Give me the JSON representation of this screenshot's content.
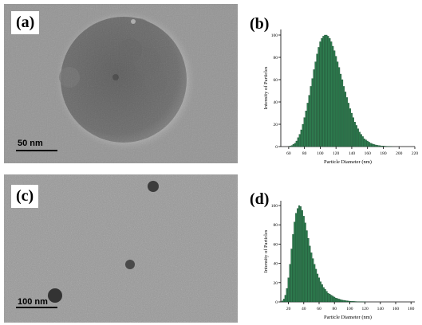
{
  "panels": {
    "a": {
      "label": "(a)",
      "scale_bar": "50 nm"
    },
    "b": {
      "label": "(b)"
    },
    "c": {
      "label": "(c)",
      "scale_bar": "100 nm"
    },
    "d": {
      "label": "(d)"
    }
  },
  "colors": {
    "bar_fill": "#2e7d4f",
    "bar_edge": "#0d3d22"
  },
  "chart_data": [
    {
      "panel": "b",
      "type": "bar",
      "xlabel": "Particle Diameter (nm)",
      "ylabel": "Intensity of Particles",
      "xlim": [
        50,
        220
      ],
      "ylim": [
        0,
        105
      ],
      "xticks": [
        60,
        80,
        100,
        120,
        140,
        160,
        180,
        200,
        220
      ],
      "yticks": [
        0,
        20,
        40,
        60,
        80,
        100
      ],
      "peak_diameter": 107,
      "peak_value": 100,
      "x": [
        62,
        64,
        66,
        68,
        70,
        72,
        74,
        76,
        78,
        80,
        82,
        84,
        86,
        88,
        90,
        92,
        94,
        96,
        98,
        100,
        102,
        104,
        106,
        108,
        110,
        112,
        114,
        116,
        118,
        120,
        122,
        124,
        126,
        128,
        130,
        132,
        134,
        136,
        138,
        140,
        142,
        144,
        146,
        148,
        150,
        152,
        154,
        156,
        158,
        160,
        162,
        164,
        166,
        168,
        170,
        172,
        174,
        176,
        178,
        180,
        182,
        184,
        186,
        188,
        190
      ],
      "values": [
        0.5,
        1,
        2,
        3,
        5,
        8,
        11,
        15,
        20,
        26,
        32,
        39,
        46,
        54,
        61,
        69,
        76,
        83,
        89,
        94,
        97,
        99,
        100,
        100,
        99,
        97,
        94,
        90,
        86,
        81,
        76,
        71,
        65,
        60,
        54,
        49,
        44,
        39,
        34,
        30,
        26,
        22,
        19,
        16,
        13,
        11,
        9,
        7,
        6,
        5,
        4,
        3,
        2.5,
        2,
        1.5,
        1.2,
        1,
        0.8,
        0.6,
        0.5,
        0.4,
        0.3,
        0.2,
        0.2,
        0.1
      ]
    },
    {
      "panel": "d",
      "type": "bar",
      "xlabel": "Particle Diameter (nm)",
      "ylabel": "Intensity of Particles",
      "xlim": [
        10,
        185
      ],
      "ylim": [
        0,
        105
      ],
      "xticks": [
        20,
        40,
        60,
        80,
        100,
        120,
        140,
        160,
        180
      ],
      "yticks": [
        0,
        20,
        40,
        60,
        80,
        100
      ],
      "peak_diameter": 35,
      "peak_value": 100,
      "x": [
        12,
        14,
        16,
        18,
        20,
        22,
        24,
        26,
        28,
        30,
        32,
        34,
        36,
        38,
        40,
        42,
        44,
        46,
        48,
        50,
        52,
        54,
        56,
        58,
        60,
        62,
        64,
        66,
        68,
        70,
        72,
        74,
        76,
        78,
        80,
        82,
        84,
        86,
        88,
        90,
        92,
        94,
        96,
        98,
        100,
        102,
        104,
        106,
        108,
        110,
        112,
        114,
        116,
        118,
        120
      ],
      "values": [
        1,
        3,
        7,
        14,
        25,
        39,
        55,
        70,
        83,
        92,
        97,
        100,
        99,
        95,
        89,
        82,
        74,
        66,
        58,
        51,
        45,
        39,
        34,
        29,
        25,
        21,
        18,
        15,
        13,
        11,
        9,
        8,
        7,
        6,
        5,
        4,
        3.5,
        3,
        2.5,
        2,
        1.7,
        1.4,
        1.2,
        1,
        0.8,
        0.7,
        0.6,
        0.5,
        0.4,
        0.3,
        0.3,
        0.2,
        0.2,
        0.1,
        0.1
      ]
    }
  ]
}
